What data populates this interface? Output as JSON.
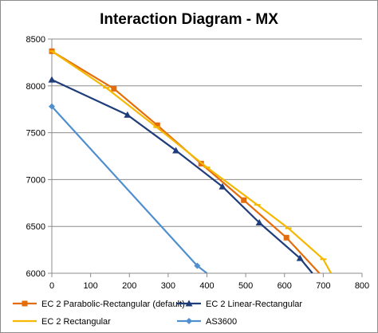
{
  "chart_data": {
    "type": "line",
    "title": "Interaction Diagram - MX",
    "xlabel": "",
    "ylabel": "",
    "xlim": [
      0,
      800
    ],
    "ylim": [
      6000,
      8500
    ],
    "x_ticks": [
      "0",
      "100",
      "200",
      "300",
      "400",
      "500",
      "600",
      "700",
      "800"
    ],
    "y_ticks": [
      "6000",
      "6500",
      "7000",
      "7500",
      "8000",
      "8500"
    ],
    "grid": "horizontal",
    "legend_position": "bottom",
    "series": [
      {
        "name": "EC 2 Parabolic-Rectangular (default)",
        "color": "#E46C0A",
        "marker": "square",
        "x": [
          0,
          160,
          272,
          385,
          495,
          605,
          690
        ],
        "y": [
          8370,
          7970,
          7580,
          7170,
          6780,
          6380,
          6000
        ]
      },
      {
        "name": "EC 2 Linear-Rectangular",
        "color": "#1F3D7A",
        "marker": "triangle",
        "x": [
          0,
          195,
          320,
          440,
          535,
          640,
          672
        ],
        "y": [
          8065,
          7690,
          7310,
          6925,
          6540,
          6160,
          6000
        ]
      },
      {
        "name": "EC 2 Rectangular",
        "color": "#F5B800",
        "marker": "dash",
        "x": [
          0,
          140,
          270,
          400,
          530,
          610,
          700,
          720
        ],
        "y": [
          8370,
          7980,
          7560,
          7130,
          6730,
          6480,
          6150,
          6000
        ]
      },
      {
        "name": "AS3600",
        "color": "#4F8FD0",
        "marker": "diamond",
        "x": [
          0,
          375,
          400
        ],
        "y": [
          7780,
          6080,
          6000
        ]
      }
    ]
  }
}
